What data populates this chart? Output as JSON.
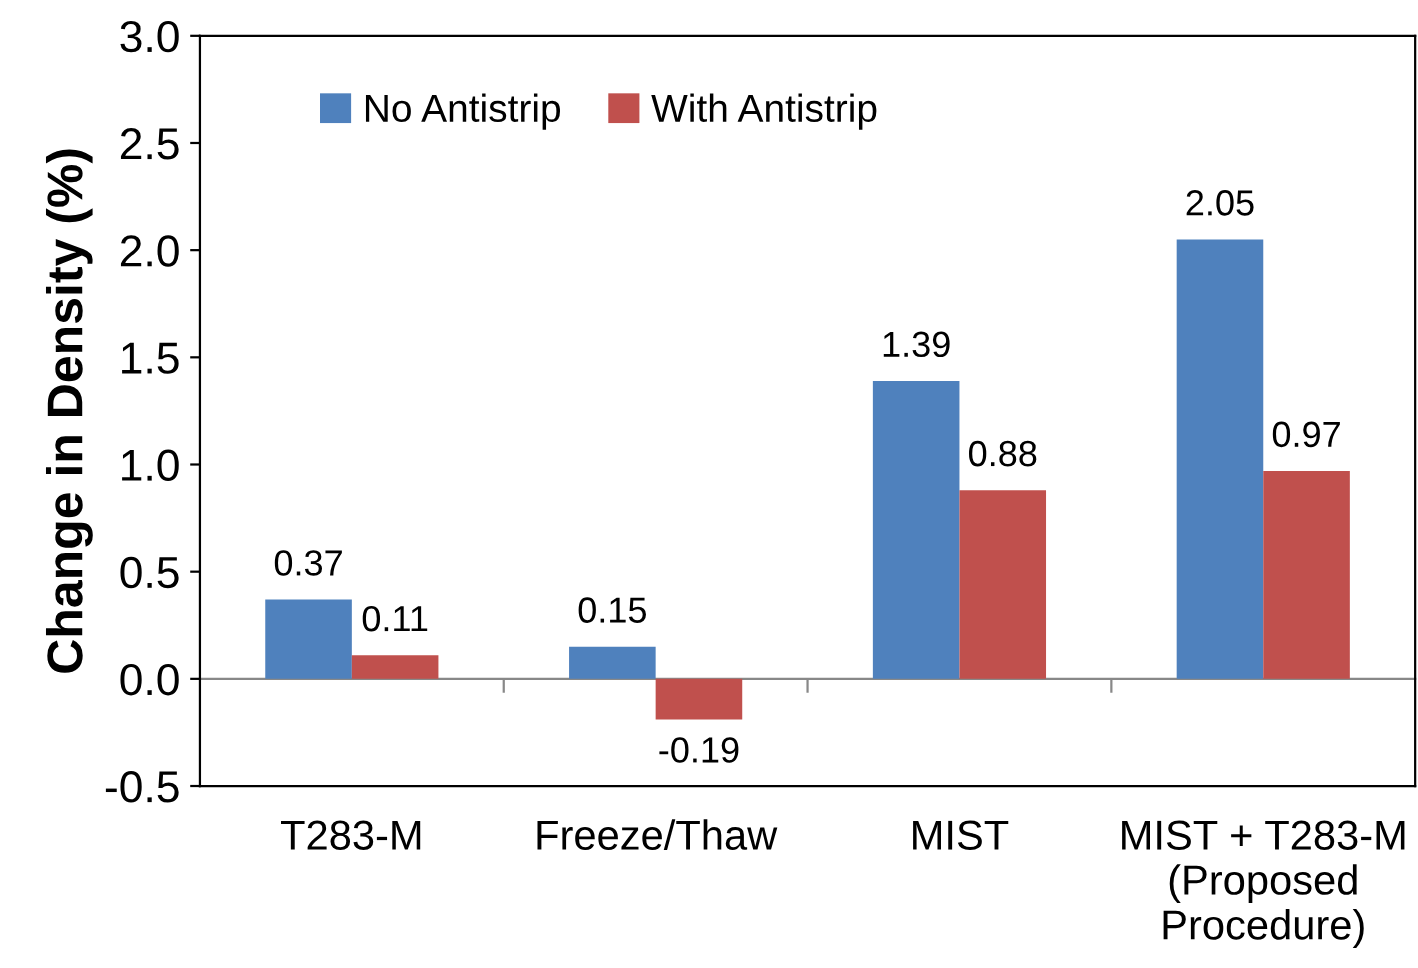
{
  "chart_data": {
    "type": "bar",
    "ylabel": "Change in Density (%)",
    "categories": [
      "T283-M",
      "Freeze/Thaw",
      "MIST",
      "MIST + T283-M\n(Proposed\nProcedure)"
    ],
    "series": [
      {
        "name": "No Antistrip",
        "color": "#4f81bd",
        "values": [
          0.37,
          0.15,
          1.39,
          2.05
        ]
      },
      {
        "name": "With Antistrip",
        "color": "#c0504d",
        "values": [
          0.11,
          -0.19,
          0.88,
          0.97
        ]
      }
    ],
    "ylim": [
      -0.5,
      3.0
    ],
    "yticks": [
      -0.5,
      {
        "value": 0,
        "label": "0.0"
      },
      0.5,
      {
        "value": 1,
        "label": "1.0"
      },
      1.5,
      {
        "value": 2,
        "label": "2.0"
      },
      2.5,
      {
        "value": 3,
        "label": "3.0"
      }
    ],
    "data_labels": true,
    "legend": "top left"
  }
}
